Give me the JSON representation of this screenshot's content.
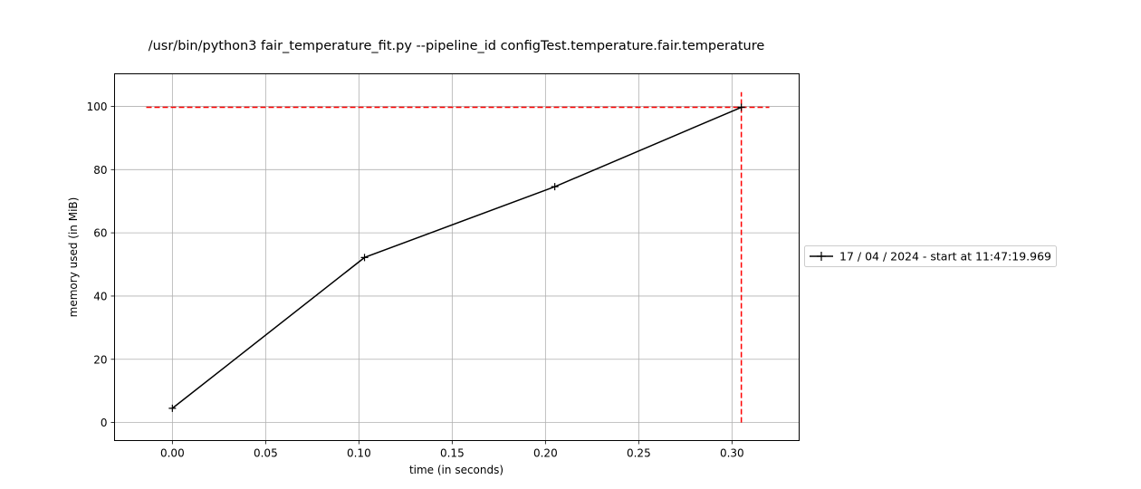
{
  "chart_data": {
    "type": "line",
    "title": "/usr/bin/python3 fair_temperature_fit.py --pipeline_id configTest.temperature.fair.temperature",
    "xlabel": "time (in seconds)",
    "ylabel": "memory used (in MiB)",
    "xlim": [
      -0.031,
      0.336
    ],
    "ylim": [
      -5.7,
      110.3
    ],
    "xticks": [
      0.0,
      0.05,
      0.1,
      0.15,
      0.2,
      0.25,
      0.3
    ],
    "xtick_labels": [
      "0.00",
      "0.05",
      "0.10",
      "0.15",
      "0.20",
      "0.25",
      "0.30"
    ],
    "yticks": [
      0,
      20,
      40,
      60,
      80,
      100
    ],
    "ytick_labels": [
      "0",
      "20",
      "40",
      "60",
      "80",
      "100"
    ],
    "grid": true,
    "legend_position": "right, outside plot",
    "series": [
      {
        "name": "17 / 04 / 2024 - start at 11:47:19.969",
        "color": "#000000",
        "marker": "plus",
        "x": [
          0.0,
          0.103,
          0.205,
          0.305
        ],
        "y": [
          4.5,
          52.2,
          74.6,
          99.7
        ]
      }
    ],
    "reference_lines": [
      {
        "orientation": "horizontal",
        "y": 99.7,
        "x_from": -0.014,
        "x_to": 0.32,
        "color": "#ff0000",
        "style": "dashed"
      },
      {
        "orientation": "vertical",
        "x": 0.305,
        "y_from": 0.0,
        "y_to": 104.5,
        "color": "#ff0000",
        "style": "dashed"
      }
    ]
  }
}
